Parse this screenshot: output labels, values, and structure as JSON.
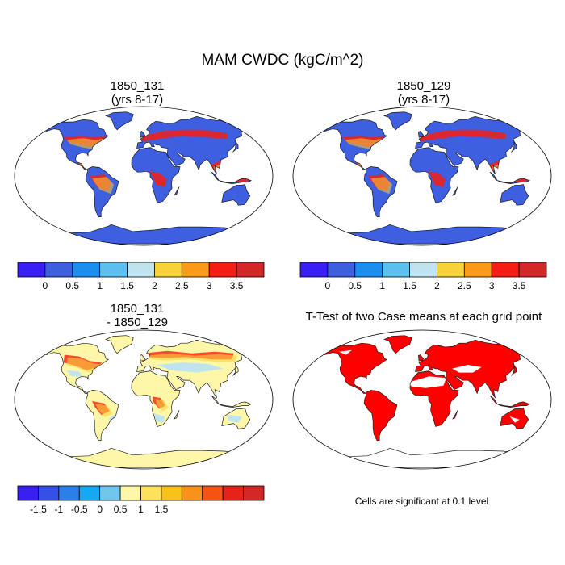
{
  "figure": {
    "title": "MAM CWDC (kgC/m^2)"
  },
  "panels": [
    {
      "id": "p1",
      "title_line1": "1850_131",
      "title_line2": "(yrs 8-17)"
    },
    {
      "id": "p2",
      "title_line1": "1850_129",
      "title_line2": "(yrs 8-17)"
    },
    {
      "id": "p3",
      "title_line1": "1850_131",
      "title_line2": "- 1850_129"
    },
    {
      "id": "p4",
      "title_line1": "T-Test of two Case means at each grid point",
      "title_line2": ""
    }
  ],
  "significance_note": "Cells are significant at 0.1 level",
  "colorbar_abs": {
    "colors": [
      "#3a1ff5",
      "#3d5fe0",
      "#1b8ff0",
      "#5cc0ef",
      "#bfe4ef",
      "#f8d23a",
      "#f99a1a",
      "#f51e12",
      "#d22828"
    ],
    "labels": [
      "0",
      "0.5",
      "1",
      "1.5",
      "2",
      "2.5",
      "3",
      "3.5"
    ]
  },
  "colorbar_diff": {
    "colors": [
      "#3a1ff5",
      "#3550e6",
      "#2b7fea",
      "#17a8f4",
      "#71c6ee",
      "#fff7a8",
      "#fbe25a",
      "#f8c21b",
      "#f9921a",
      "#f55316",
      "#e5231a",
      "#d22828"
    ],
    "labels": [
      "-1.5",
      "-1",
      "-0.5",
      "0",
      "0.5",
      "1",
      "1.5"
    ]
  },
  "map_colors": {
    "ocean": "#ffffff",
    "low": "#3d5fe0",
    "mid": "#5cc0ef",
    "warm": "#f8d23a",
    "hot": "#f51e12",
    "diff_base": "#fff7a8",
    "diff_neg": "#bfe4ef",
    "significant": "#ff0000",
    "coast": "#1a1a1a"
  }
}
